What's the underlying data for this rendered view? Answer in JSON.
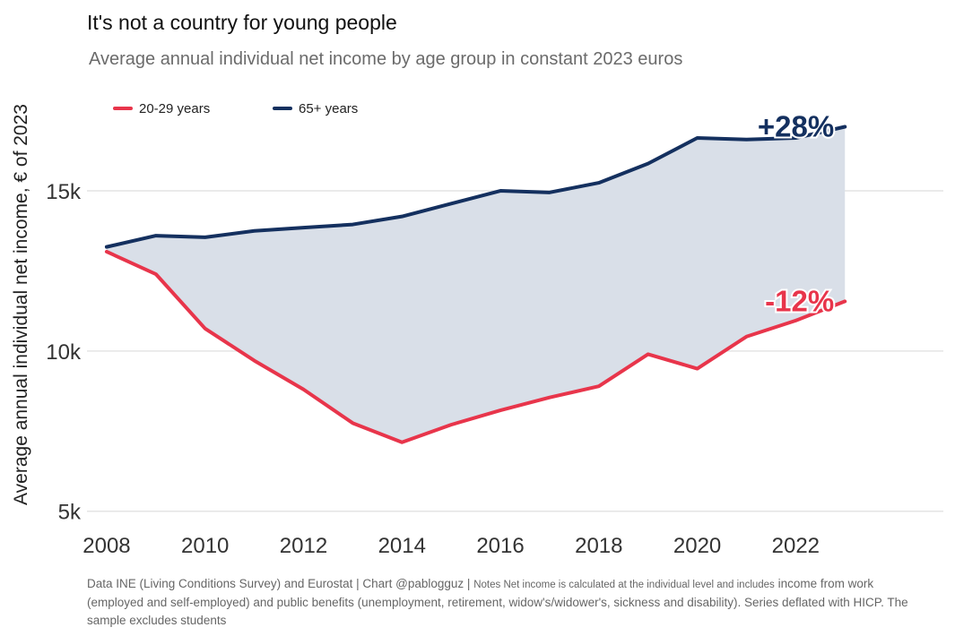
{
  "header": {
    "title": "It's not a country for young people",
    "subtitle": "Average annual individual net income by age group in constant 2023 euros"
  },
  "footer": {
    "source": "Data INE (Living Conditions Survey) and Eurostat | Chart @pablogguz |",
    "notes_lead": "Notes Net income is calculated at the individual level and includes",
    "notes_rest": "income from work (employed and self-employed) and public benefits (unemployment, retirement, widow's/widower's, sickness and disability). Series deflated with HICP. The sample excludes students"
  },
  "chart_data": {
    "type": "line",
    "ylabel": "Average annual individual net income, € of 2023",
    "xlabel": "",
    "x": [
      2008,
      2009,
      2010,
      2011,
      2012,
      2013,
      2014,
      2015,
      2016,
      2017,
      2018,
      2019,
      2020,
      2021,
      2022,
      2023
    ],
    "xlim": [
      2007.6,
      2025.0
    ],
    "ylim": [
      4600,
      18300
    ],
    "x_ticks": [
      2008,
      2010,
      2012,
      2014,
      2016,
      2018,
      2020,
      2022
    ],
    "x_tick_labels": [
      "2008",
      "2010",
      "2012",
      "2014",
      "2016",
      "2018",
      "2020",
      "2022"
    ],
    "y_ticks": [
      5000,
      10000,
      15000
    ],
    "y_tick_labels": [
      "5k",
      "10k",
      "15k"
    ],
    "grid": true,
    "legend_position": "top-left",
    "shade_between_series": true,
    "series": [
      {
        "name": "20-29 years",
        "color": "#e8354b",
        "values": [
          13100,
          12400,
          10700,
          9700,
          8800,
          7750,
          7150,
          7700,
          8150,
          8550,
          8900,
          9900,
          9450,
          10450,
          10950,
          11550
        ],
        "end_label": "-12%"
      },
      {
        "name": "65+ years",
        "color": "#14305f",
        "values": [
          13250,
          13600,
          13550,
          13750,
          13850,
          13950,
          14200,
          14600,
          15000,
          14950,
          15250,
          15850,
          16650,
          16600,
          16650,
          17000
        ],
        "end_label": "+28%"
      }
    ],
    "fill_color": "#d9dfe8"
  }
}
